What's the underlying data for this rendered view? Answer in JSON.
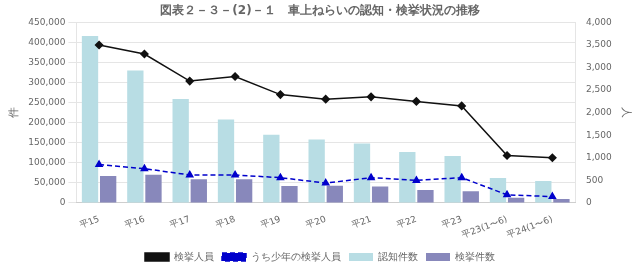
{
  "chart_data": {
    "type": "bar",
    "title": "図表２－３－(2)－１　車上ねらいの認知・検挙状況の推移",
    "ylabel": "件",
    "y2label": "人",
    "categories": [
      "平15",
      "平16",
      "平17",
      "平18",
      "平19",
      "平20",
      "平21",
      "平22",
      "平23",
      "平23(1〜6)",
      "平24(1〜6)"
    ],
    "series": [
      {
        "name": "認知件数",
        "type": "bar",
        "color": "#b8dde4",
        "values": [
          416000,
          330000,
          259000,
          208000,
          170000,
          158000,
          148000,
          127000,
          117000,
          62000,
          55000
        ]
      },
      {
        "name": "検挙件数",
        "type": "bar",
        "color": "#8888bb",
        "values": [
          67000,
          70000,
          59000,
          59000,
          42000,
          43000,
          41000,
          32000,
          29000,
          13000,
          10000
        ]
      },
      {
        "name": "検挙人員",
        "type": "line",
        "axis": "y2",
        "color": "#111111",
        "marker": "diamond",
        "line_style": "solid",
        "values": [
          3500,
          3300,
          2700,
          2800,
          2400,
          2300,
          2350,
          2250,
          2150,
          1050,
          1000
        ]
      },
      {
        "name": "うち少年の検挙人員",
        "type": "line",
        "axis": "y2",
        "color": "#0000cc",
        "marker": "triangle",
        "line_style": "dashed",
        "values": [
          850,
          760,
          620,
          620,
          560,
          440,
          560,
          500,
          560,
          180,
          140
        ]
      }
    ],
    "ylim": [
      0,
      450000
    ],
    "yticks": [
      0,
      {
        "value": 50000,
        "label": "50,000"
      },
      {
        "value": 100000,
        "label": "100,000"
      },
      {
        "value": 150000,
        "label": "150,000"
      },
      {
        "value": 200000,
        "label": "200,000"
      },
      {
        "value": 250000,
        "label": "250,000"
      },
      {
        "value": 300000,
        "label": "300,000"
      },
      {
        "value": 350000,
        "label": "350,000"
      },
      {
        "value": 400000,
        "label": "400,000"
      },
      {
        "value": 450000,
        "label": "450,000"
      }
    ],
    "y2lim": [
      0,
      4000
    ],
    "y2ticks": [
      0,
      500,
      {
        "value": 1000,
        "label": "1,000"
      },
      {
        "value": 1500,
        "label": "1,500"
      },
      {
        "value": 2000,
        "label": "2,000"
      },
      {
        "value": 2500,
        "label": "2,500"
      },
      {
        "value": 3000,
        "label": "3,000"
      },
      {
        "value": 3500,
        "label": "3,500"
      },
      {
        "value": 4000,
        "label": "4,000"
      }
    ],
    "grid": true,
    "legend": "bottom"
  }
}
